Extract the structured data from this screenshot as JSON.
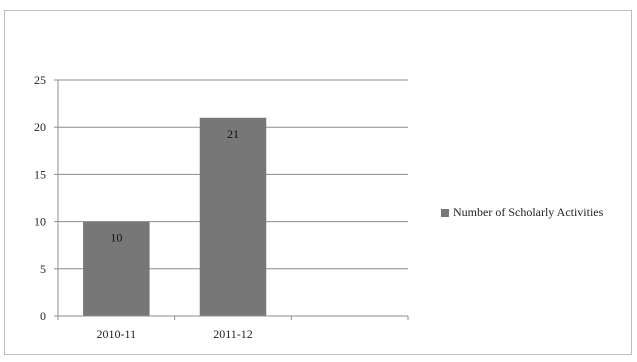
{
  "chart_data": {
    "type": "bar",
    "title": "",
    "xlabel": "",
    "ylabel": "",
    "categories": [
      "2010-11",
      "2011-12"
    ],
    "series": [
      {
        "name": "Number of Scholarly Activities",
        "values": [
          10,
          21
        ],
        "color": "#777777"
      }
    ],
    "ylim": [
      0,
      25
    ],
    "yticks": [
      "0",
      "5",
      "10",
      "15",
      "20",
      "25"
    ],
    "data_labels": [
      "10",
      "21"
    ],
    "grid": true,
    "legend_position": "right"
  }
}
